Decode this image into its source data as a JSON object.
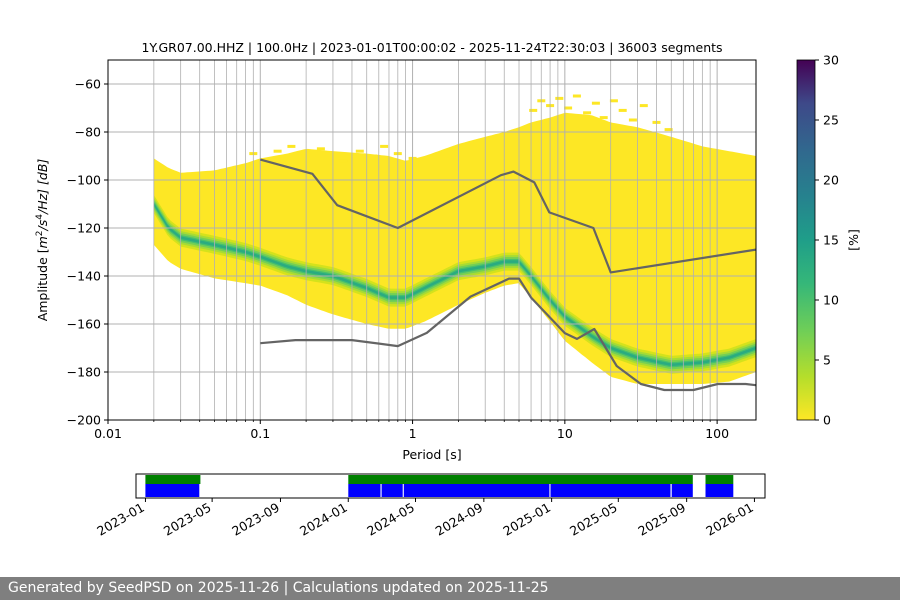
{
  "chart_data": [
    {
      "type": "heatmap",
      "title": "1Y.GR07.00.HHZ | 100.0Hz | 2023-01-01T00:00:02 - 2025-11-24T22:30:03 | 36003 segments",
      "xlabel": "Period [s]",
      "ylabel_parts": [
        "Amplitude [",
        "m",
        "2",
        "/",
        "s",
        "4",
        "/Hz] [dB]"
      ],
      "x_scale": "log",
      "xlim": [
        0.01,
        180
      ],
      "ylim": [
        -200,
        -50
      ],
      "xticks": [
        {
          "value": 0.01,
          "label": "0.01"
        },
        {
          "value": 0.1,
          "label": "0.1"
        },
        {
          "value": 1,
          "label": "1"
        },
        {
          "value": 10,
          "label": "10"
        },
        {
          "value": 100,
          "label": "100"
        }
      ],
      "yticks": [
        {
          "value": -60,
          "label": "−60"
        },
        {
          "value": -80,
          "label": "−80"
        },
        {
          "value": -100,
          "label": "−100"
        },
        {
          "value": -120,
          "label": "−120"
        },
        {
          "value": -140,
          "label": "−140"
        },
        {
          "value": -160,
          "label": "−160"
        },
        {
          "value": -180,
          "label": "−180"
        },
        {
          "value": -200,
          "label": "−200"
        }
      ],
      "grid": true,
      "colormap": "viridis",
      "colorbar": {
        "label": "[%]",
        "range": [
          0,
          30
        ],
        "ticks": [
          {
            "value": 0,
            "label": "0"
          },
          {
            "value": 5,
            "label": "5"
          },
          {
            "value": 10,
            "label": "10"
          },
          {
            "value": 15,
            "label": "15"
          },
          {
            "value": 20,
            "label": "20"
          },
          {
            "value": 25,
            "label": "25"
          },
          {
            "value": 30,
            "label": "30"
          }
        ]
      },
      "mode_curve": {
        "x": [
          0.02,
          0.025,
          0.03,
          0.05,
          0.08,
          0.1,
          0.15,
          0.2,
          0.3,
          0.5,
          0.7,
          0.9,
          1.2,
          2,
          3,
          4,
          5,
          6,
          8,
          10,
          15,
          20,
          30,
          50,
          80,
          120,
          180
        ],
        "y": [
          -110,
          -120,
          -124,
          -127,
          -130,
          -132,
          -136,
          -138,
          -140,
          -145,
          -149,
          -149,
          -145,
          -138,
          -136,
          -134,
          -134,
          -140,
          -150,
          -157,
          -165,
          -170,
          -174,
          -177,
          -176,
          -174,
          -170
        ]
      },
      "density_band": {
        "x": [
          0.02,
          0.025,
          0.03,
          0.05,
          0.08,
          0.1,
          0.15,
          0.2,
          0.3,
          0.5,
          0.7,
          0.9,
          1.2,
          2,
          3,
          4,
          5,
          6,
          8,
          10,
          15,
          20,
          30,
          50,
          80,
          120,
          180
        ],
        "upper": [
          -91,
          -95,
          -97,
          -96,
          -93,
          -91,
          -89,
          -87,
          -88,
          -89,
          -90,
          -92,
          -90,
          -85,
          -82,
          -80,
          -78,
          -76,
          -74,
          -72,
          -73,
          -76,
          -78,
          -82,
          -86,
          -88,
          -90
        ],
        "lower": [
          -127,
          -134,
          -137,
          -141,
          -143,
          -144,
          -148,
          -152,
          -156,
          -160,
          -162,
          -162,
          -159,
          -152,
          -147,
          -144,
          -143,
          -149,
          -159,
          -167,
          -176,
          -182,
          -185,
          -185,
          -185,
          -184,
          -180
        ]
      },
      "sparse_hits": {
        "x": [
          0.09,
          0.11,
          0.13,
          0.16,
          0.19,
          0.25,
          0.35,
          0.45,
          0.55,
          0.65,
          0.8,
          1.0,
          6.2,
          7,
          8,
          9.2,
          10.5,
          12,
          14,
          16,
          18,
          21,
          24,
          28,
          33,
          40,
          48
        ],
        "y": [
          -89,
          -92,
          -88,
          -86,
          -90,
          -87,
          -92,
          -88,
          -90,
          -86,
          -89,
          -91,
          -71,
          -67,
          -69,
          -66,
          -70,
          -65,
          -72,
          -68,
          -74,
          -67,
          -71,
          -75,
          -69,
          -76,
          -79
        ]
      },
      "nhnm": {
        "name": "NHNM",
        "x": [
          0.1,
          0.22,
          0.32,
          0.8,
          3.8,
          4.6,
          6.3,
          7.9,
          15.4,
          20,
          180
        ],
        "y": [
          -91.5,
          -97.4,
          -110.5,
          -120,
          -98,
          -96.5,
          -101,
          -113.5,
          -120,
          -138.5,
          -129
        ]
      },
      "nlnm": {
        "name": "NLNM",
        "x": [
          0.1,
          0.17,
          0.4,
          0.8,
          1.24,
          2.4,
          4.3,
          5,
          6,
          10,
          12,
          15.6,
          21.9,
          31.6,
          45,
          70,
          101,
          154,
          180
        ],
        "y": [
          -168,
          -166.7,
          -166.7,
          -169.2,
          -163.7,
          -148.6,
          -141.1,
          -141.1,
          -149,
          -163.8,
          -166.2,
          -162.1,
          -177.5,
          -185,
          -187.5,
          -187.5,
          -185,
          -185,
          -185.5
        ]
      }
    },
    {
      "type": "timeline",
      "xlim": [
        "2022-12-15",
        "2026-01-20"
      ],
      "xticks": [
        "2023-01",
        "2023-05",
        "2023-09",
        "2024-01",
        "2024-05",
        "2024-09",
        "2025-01",
        "2025-05",
        "2025-09",
        "2026-01"
      ],
      "colors": {
        "green": "#008000",
        "blue": "#0000ff"
      },
      "green_segments": [
        [
          "2023-01-01",
          "2023-04-10"
        ],
        [
          "2024-01-01",
          "2025-09-12"
        ],
        [
          "2025-10-05",
          "2025-11-24"
        ]
      ],
      "blue_segments": [
        [
          "2023-01-01",
          "2023-04-08"
        ],
        [
          "2024-01-01",
          "2024-02-28"
        ],
        [
          "2024-03-01",
          "2024-04-08"
        ],
        [
          "2024-04-10",
          "2024-12-28"
        ],
        [
          "2024-12-30",
          "2025-08-03"
        ],
        [
          "2025-08-05",
          "2025-09-12"
        ],
        [
          "2025-10-05",
          "2025-11-24"
        ]
      ]
    }
  ],
  "footer": {
    "text": "Generated by SeedPSD on 2025-11-26 | Calculations updated on 2025-11-25"
  }
}
